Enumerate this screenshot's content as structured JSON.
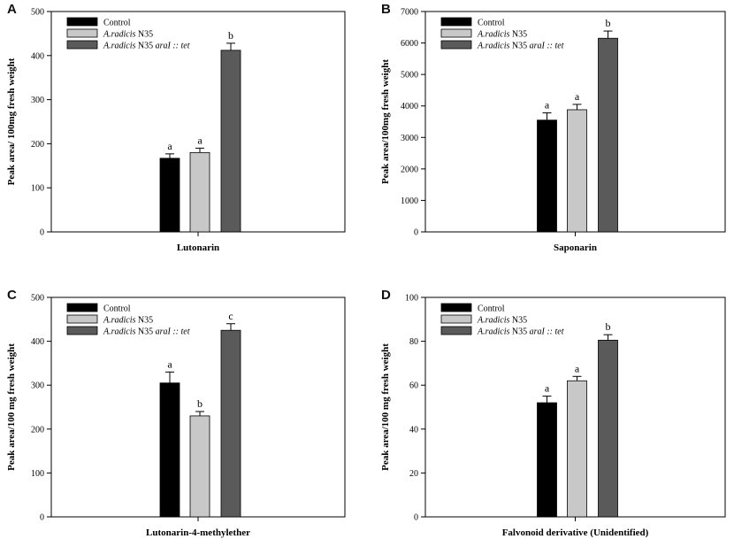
{
  "colors": {
    "control": "#000000",
    "n35": "#c8c8c8",
    "mutant": "#5a5a5a",
    "axis": "#000000"
  },
  "legend": [
    {
      "key": "control",
      "prefix": "",
      "italic": "",
      "suffix": "Control"
    },
    {
      "key": "n35",
      "prefix": "",
      "italic": "A.radicis",
      "suffix": " N35"
    },
    {
      "key": "mutant",
      "prefix": "",
      "italic": "A.radicis",
      "suffix": " N35 ",
      "italic2": "araI :: tet"
    }
  ],
  "chart_data": [
    {
      "panel": "A",
      "type": "bar",
      "ylabel": "Peak area/ 100mg fresh weight",
      "xlabel": "Lutonarin",
      "ylim": [
        0,
        500
      ],
      "yticks": [
        0,
        100,
        200,
        300,
        400,
        500
      ],
      "series": [
        {
          "name": "Control",
          "value": 167,
          "error": 10,
          "letter": "a"
        },
        {
          "name": "A.radicis N35",
          "value": 180,
          "error": 10,
          "letter": "a"
        },
        {
          "name": "A.radicis N35 araI :: tet",
          "value": 412,
          "error": 16,
          "letter": "b"
        }
      ]
    },
    {
      "panel": "B",
      "type": "bar",
      "ylabel": "Peak area/100mg fresh weight",
      "xlabel": "Saponarin",
      "ylim": [
        0,
        7000
      ],
      "yticks": [
        0,
        1000,
        2000,
        3000,
        4000,
        5000,
        6000,
        7000
      ],
      "series": [
        {
          "name": "Control",
          "value": 3550,
          "error": 230,
          "letter": "a"
        },
        {
          "name": "A.radicis N35",
          "value": 3880,
          "error": 170,
          "letter": "a"
        },
        {
          "name": "A.radicis N35 araI :: tet",
          "value": 6150,
          "error": 230,
          "letter": "b"
        }
      ]
    },
    {
      "panel": "C",
      "type": "bar",
      "ylabel": "Peak area/100 mg fresh weight",
      "xlabel": "Lutonarin-4-methylether",
      "ylim": [
        0,
        500
      ],
      "yticks": [
        0,
        100,
        200,
        300,
        400,
        500
      ],
      "series": [
        {
          "name": "Control",
          "value": 305,
          "error": 25,
          "letter": "a"
        },
        {
          "name": "A.radicis N35",
          "value": 230,
          "error": 10,
          "letter": "b"
        },
        {
          "name": "A.radicis N35 araI :: tet",
          "value": 425,
          "error": 15,
          "letter": "c"
        }
      ]
    },
    {
      "panel": "D",
      "type": "bar",
      "ylabel": "Peak area/100 mg fresh weight",
      "xlabel": "Falvonoid derivative (Unidentified)",
      "ylim": [
        0,
        100
      ],
      "yticks": [
        0,
        20,
        40,
        60,
        80,
        100
      ],
      "series": [
        {
          "name": "Control",
          "value": 52,
          "error": 3,
          "letter": "a"
        },
        {
          "name": "A.radicis N35",
          "value": 62,
          "error": 2,
          "letter": "a"
        },
        {
          "name": "A.radicis N35 araI :: tet",
          "value": 80.5,
          "error": 2.5,
          "letter": "b"
        }
      ]
    }
  ]
}
